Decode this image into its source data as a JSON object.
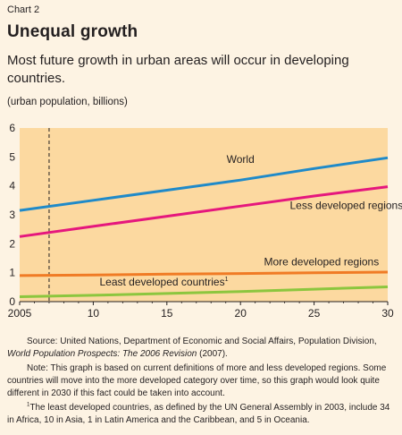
{
  "header": {
    "chart_number": "Chart 2",
    "title": "Unequal growth",
    "subtitle": "Most future growth in urban areas will occur in developing countries.",
    "unit": "(urban population, billions)"
  },
  "chart_data": {
    "type": "line",
    "title": "Unequal growth",
    "subtitle": "Most future growth in urban areas will occur in developing countries.",
    "ylabel": "(urban population, billions)",
    "xlabel": "",
    "xlim": [
      2005,
      2030
    ],
    "ylim": [
      0,
      6
    ],
    "x_ticks": [
      2005,
      2010,
      2015,
      2020,
      2025,
      2030
    ],
    "x_tick_labels": [
      "2005",
      "10",
      "15",
      "20",
      "25",
      "30"
    ],
    "y_ticks": [
      0,
      1,
      2,
      3,
      4,
      5,
      6
    ],
    "y_tick_labels": [
      "0",
      "1",
      "2",
      "3",
      "4",
      "5",
      "6"
    ],
    "grid": false,
    "background_color": "#fcd9a0",
    "reference_line": {
      "x": 2007,
      "style": "dashed"
    },
    "x": [
      2005,
      2010,
      2015,
      2020,
      2025,
      2030
    ],
    "series": [
      {
        "name": "World",
        "color": "#1f8ac9",
        "values": [
          3.15,
          3.5,
          3.85,
          4.2,
          4.6,
          4.97
        ],
        "label_at": [
          2020,
          4.8
        ]
      },
      {
        "name": "Less developed regions",
        "color": "#e5177d",
        "values": [
          2.25,
          2.6,
          2.95,
          3.3,
          3.65,
          3.97
        ],
        "label_at": [
          2027.2,
          3.2
        ]
      },
      {
        "name": "More developed regions",
        "color": "#f07b25",
        "values": [
          0.9,
          0.92,
          0.95,
          0.97,
          1.0,
          1.02
        ],
        "label_at": [
          2025.5,
          1.25
        ]
      },
      {
        "name": "Least developed countries",
        "label_sup": "1",
        "color": "#8cc63e",
        "values": [
          0.17,
          0.22,
          0.28,
          0.35,
          0.43,
          0.51
        ],
        "label_at": [
          2014.8,
          0.55
        ]
      }
    ]
  },
  "notes": {
    "source_prefix": "Source: United Nations, Department of Economic and Social Affairs, Population Division, ",
    "source_italic": "World Population Prospects: The 2006 Revision",
    "source_suffix": " (2007).",
    "note": "Note: This graph is based on current definitions of more and less developed regions. Some countries will move into the more developed category over time, so this graph would look quite different in 2030 if this fact could be taken into account.",
    "footnote_marker": "1",
    "footnote": "The least developed countries, as defined by the UN General Assembly in 2003, include 34 in Africa, 10 in Asia, 1 in Latin America and the Caribbean, and 5 in Oceania."
  }
}
